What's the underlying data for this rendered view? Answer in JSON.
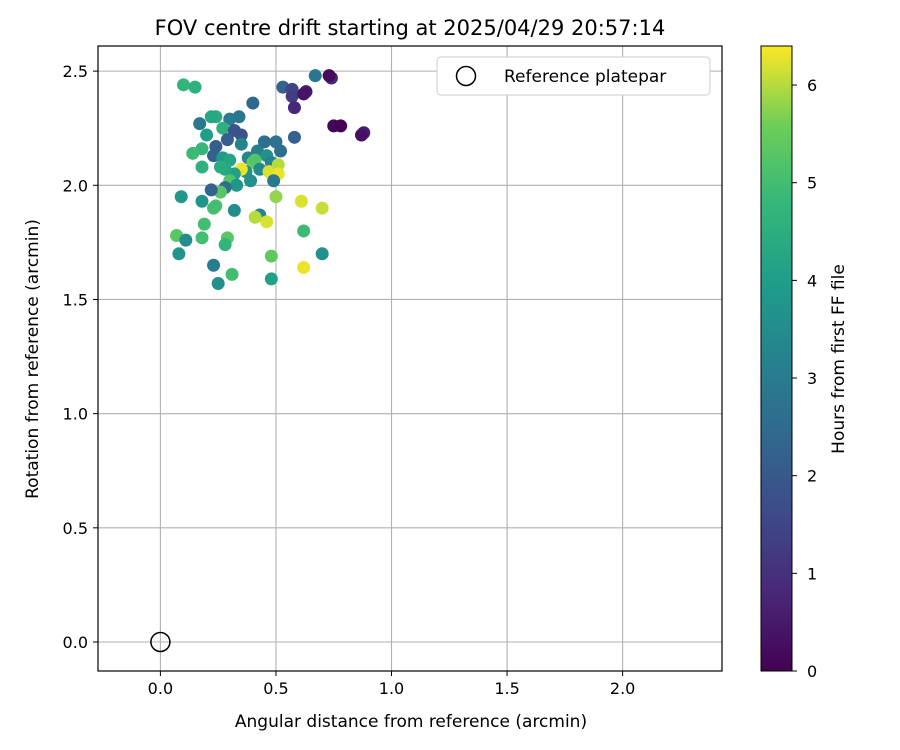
{
  "chart_data": {
    "type": "scatter",
    "title": "FOV centre drift starting at 2025/04/29 20:57:14",
    "xlabel": "Angular distance from reference (arcmin)",
    "ylabel": "Rotation from reference (arcmin)",
    "xlim": [
      -0.27,
      2.43
    ],
    "ylim": [
      -0.127,
      2.61
    ],
    "x_ticks": [
      "0.0",
      "0.5",
      "1.0",
      "1.5",
      "2.0"
    ],
    "y_ticks": [
      "0.0",
      "0.5",
      "1.0",
      "1.5",
      "2.0",
      "2.5"
    ],
    "grid": true,
    "legend": {
      "placement": "top-right",
      "entries": [
        "Reference platepar"
      ]
    },
    "reference_point": {
      "x": 0.0,
      "y": 0.0,
      "label": "Reference platepar"
    },
    "colorbar": {
      "label": "Hours from first FF file",
      "range": [
        0,
        6.4
      ],
      "ticks": [
        "0",
        "1",
        "2",
        "3",
        "4",
        "5",
        "6"
      ],
      "colormap": "viridis"
    },
    "points": [
      {
        "x": 0.74,
        "y": 2.47,
        "c": 0.8
      },
      {
        "x": 0.73,
        "y": 2.48,
        "c": 0.2
      },
      {
        "x": 0.67,
        "y": 2.48,
        "c": 2.8
      },
      {
        "x": 0.53,
        "y": 2.43,
        "c": 2.2
      },
      {
        "x": 0.57,
        "y": 2.42,
        "c": 1.5
      },
      {
        "x": 0.57,
        "y": 2.39,
        "c": 1.3
      },
      {
        "x": 0.63,
        "y": 2.41,
        "c": 0.5
      },
      {
        "x": 0.62,
        "y": 2.4,
        "c": 0.4
      },
      {
        "x": 0.58,
        "y": 2.34,
        "c": 0.8
      },
      {
        "x": 0.75,
        "y": 2.26,
        "c": 0.1
      },
      {
        "x": 0.78,
        "y": 2.26,
        "c": 0.0
      },
      {
        "x": 0.88,
        "y": 2.23,
        "c": 0.6
      },
      {
        "x": 0.87,
        "y": 2.22,
        "c": 0.3
      },
      {
        "x": 0.58,
        "y": 2.21,
        "c": 2.2
      },
      {
        "x": 0.4,
        "y": 2.36,
        "c": 2.4
      },
      {
        "x": 0.1,
        "y": 2.44,
        "c": 4.7
      },
      {
        "x": 0.15,
        "y": 2.43,
        "c": 4.6
      },
      {
        "x": 0.24,
        "y": 2.3,
        "c": 4.4
      },
      {
        "x": 0.22,
        "y": 2.3,
        "c": 4.3
      },
      {
        "x": 0.3,
        "y": 2.29,
        "c": 3.0
      },
      {
        "x": 0.34,
        "y": 2.3,
        "c": 2.9
      },
      {
        "x": 0.17,
        "y": 2.27,
        "c": 2.9
      },
      {
        "x": 0.27,
        "y": 2.25,
        "c": 4.6
      },
      {
        "x": 0.32,
        "y": 2.24,
        "c": 1.9
      },
      {
        "x": 0.35,
        "y": 2.22,
        "c": 1.8
      },
      {
        "x": 0.29,
        "y": 2.2,
        "c": 2.1
      },
      {
        "x": 0.2,
        "y": 2.22,
        "c": 4.0
      },
      {
        "x": 0.45,
        "y": 2.19,
        "c": 2.6
      },
      {
        "x": 0.5,
        "y": 2.19,
        "c": 2.7
      },
      {
        "x": 0.35,
        "y": 2.18,
        "c": 3.3
      },
      {
        "x": 0.24,
        "y": 2.17,
        "c": 2.1
      },
      {
        "x": 0.18,
        "y": 2.16,
        "c": 4.8
      },
      {
        "x": 0.14,
        "y": 2.14,
        "c": 4.9
      },
      {
        "x": 0.23,
        "y": 2.13,
        "c": 2.2
      },
      {
        "x": 0.27,
        "y": 2.12,
        "c": 3.9
      },
      {
        "x": 0.3,
        "y": 2.11,
        "c": 4.2
      },
      {
        "x": 0.38,
        "y": 2.12,
        "c": 3.3
      },
      {
        "x": 0.42,
        "y": 2.15,
        "c": 3.0
      },
      {
        "x": 0.46,
        "y": 2.13,
        "c": 3.6
      },
      {
        "x": 0.52,
        "y": 2.15,
        "c": 2.6
      },
      {
        "x": 0.48,
        "y": 2.1,
        "c": 3.2
      },
      {
        "x": 0.4,
        "y": 2.1,
        "c": 5.5
      },
      {
        "x": 0.41,
        "y": 2.11,
        "c": 5.2
      },
      {
        "x": 0.43,
        "y": 2.07,
        "c": 3.4
      },
      {
        "x": 0.37,
        "y": 2.06,
        "c": 3.7
      },
      {
        "x": 0.35,
        "y": 2.07,
        "c": 6.3
      },
      {
        "x": 0.32,
        "y": 2.05,
        "c": 4.1
      },
      {
        "x": 0.28,
        "y": 2.07,
        "c": 4.3
      },
      {
        "x": 0.26,
        "y": 2.08,
        "c": 4.4
      },
      {
        "x": 0.18,
        "y": 2.08,
        "c": 4.6
      },
      {
        "x": 0.47,
        "y": 2.06,
        "c": 6.2
      },
      {
        "x": 0.51,
        "y": 2.09,
        "c": 6.0
      },
      {
        "x": 0.51,
        "y": 2.05,
        "c": 6.3
      },
      {
        "x": 0.49,
        "y": 2.02,
        "c": 2.9
      },
      {
        "x": 0.39,
        "y": 2.02,
        "c": 3.6
      },
      {
        "x": 0.3,
        "y": 2.02,
        "c": 5.2
      },
      {
        "x": 0.33,
        "y": 2.0,
        "c": 3.8
      },
      {
        "x": 0.28,
        "y": 1.99,
        "c": 2.6
      },
      {
        "x": 0.26,
        "y": 1.97,
        "c": 5.3
      },
      {
        "x": 0.22,
        "y": 1.98,
        "c": 2.3
      },
      {
        "x": 0.5,
        "y": 1.95,
        "c": 5.8
      },
      {
        "x": 0.09,
        "y": 1.95,
        "c": 3.8
      },
      {
        "x": 0.18,
        "y": 1.93,
        "c": 3.7
      },
      {
        "x": 0.24,
        "y": 1.91,
        "c": 5.1
      },
      {
        "x": 0.23,
        "y": 1.9,
        "c": 5.0
      },
      {
        "x": 0.32,
        "y": 1.89,
        "c": 3.5
      },
      {
        "x": 0.61,
        "y": 1.93,
        "c": 6.2
      },
      {
        "x": 0.7,
        "y": 1.9,
        "c": 6.1
      },
      {
        "x": 0.43,
        "y": 1.87,
        "c": 3.3
      },
      {
        "x": 0.41,
        "y": 1.86,
        "c": 6.0
      },
      {
        "x": 0.46,
        "y": 1.84,
        "c": 6.2
      },
      {
        "x": 0.19,
        "y": 1.83,
        "c": 5.0
      },
      {
        "x": 0.62,
        "y": 1.8,
        "c": 4.9
      },
      {
        "x": 0.07,
        "y": 1.78,
        "c": 5.3
      },
      {
        "x": 0.11,
        "y": 1.76,
        "c": 3.5
      },
      {
        "x": 0.18,
        "y": 1.77,
        "c": 5.0
      },
      {
        "x": 0.29,
        "y": 1.77,
        "c": 5.3
      },
      {
        "x": 0.28,
        "y": 1.74,
        "c": 4.7
      },
      {
        "x": 0.08,
        "y": 1.7,
        "c": 3.7
      },
      {
        "x": 0.7,
        "y": 1.7,
        "c": 3.6
      },
      {
        "x": 0.48,
        "y": 1.69,
        "c": 5.4
      },
      {
        "x": 0.23,
        "y": 1.65,
        "c": 3.0
      },
      {
        "x": 0.62,
        "y": 1.64,
        "c": 6.3
      },
      {
        "x": 0.31,
        "y": 1.61,
        "c": 5.0
      },
      {
        "x": 0.48,
        "y": 1.59,
        "c": 4.1
      },
      {
        "x": 0.25,
        "y": 1.57,
        "c": 3.6
      }
    ]
  }
}
